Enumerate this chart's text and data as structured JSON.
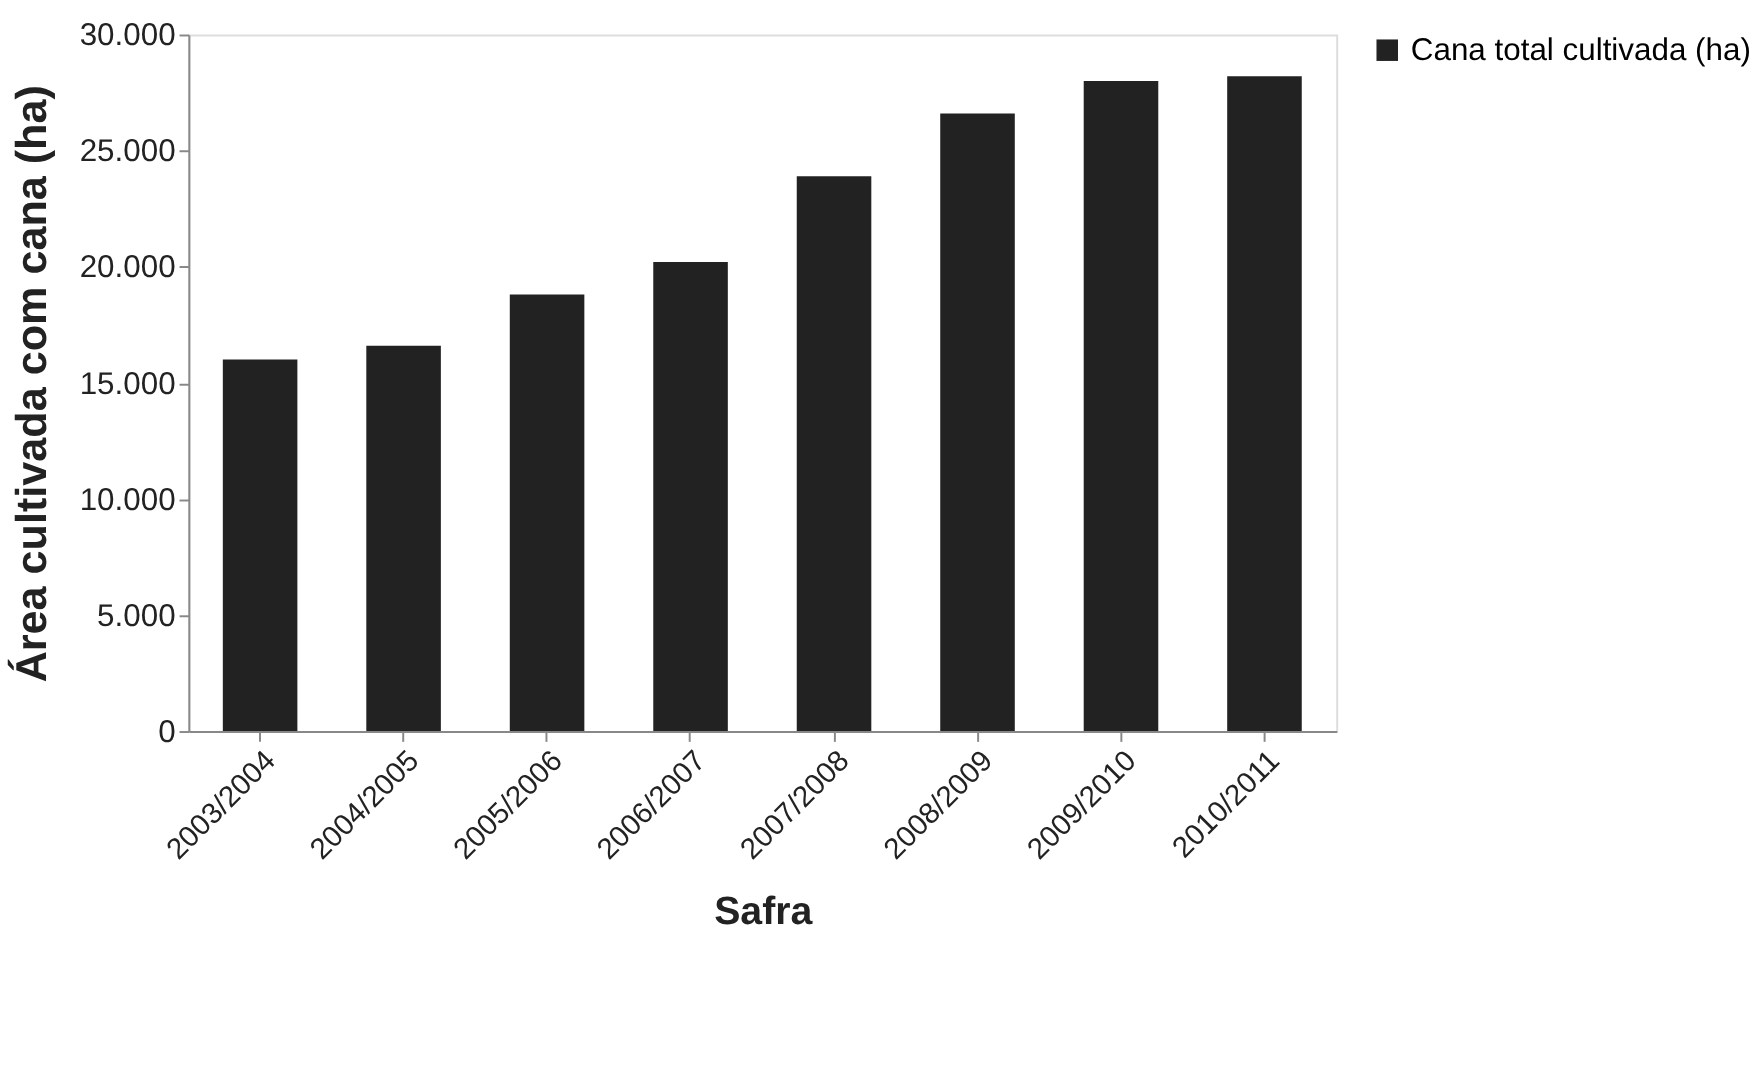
{
  "chart_data": {
    "type": "bar",
    "categories": [
      "2003/2004",
      "2004/2005",
      "2005/2006",
      "2006/2007",
      "2007/2008",
      "2008/2009",
      "2009/2010",
      "2010/2011"
    ],
    "series": [
      {
        "name": "Cana total cultivada (ha)",
        "color": "#222222",
        "values": [
          16000,
          16600,
          18800,
          20200,
          23900,
          26600,
          28000,
          28200
        ]
      }
    ],
    "xlabel": "Safra",
    "ylabel": "Área cultivada com cana (ha)",
    "ylim": [
      0,
      30000
    ],
    "yticks": [
      0,
      {
        "value": 5000,
        "label": "5.000"
      },
      {
        "value": 10000,
        "label": "10.000"
      },
      {
        "value": 15000,
        "label": "15.000"
      },
      {
        "value": 20000,
        "label": "20.000"
      },
      {
        "value": 25000,
        "label": "25.000"
      },
      {
        "value": 30000,
        "label": "30.000"
      }
    ],
    "grid": false,
    "legend": "right"
  }
}
